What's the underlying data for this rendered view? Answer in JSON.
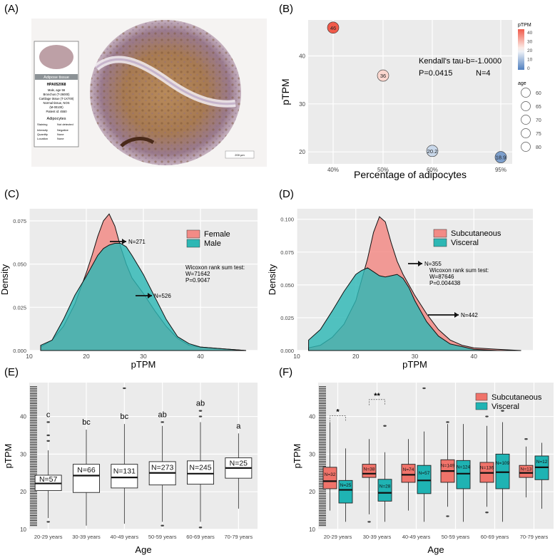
{
  "panel_labels": [
    "(A)",
    "(B)",
    "(C)",
    "(D)",
    "(E)",
    "(F)"
  ],
  "tissue_card": {
    "header": "Adipose tissue",
    "antibody": "HPA052068",
    "lines": [
      "Male, age 56",
      "Bronchus (T-26000)",
      "Cartilage tissue (T-1X700)",
      "Normal tissue, NOS",
      "(M-00100)",
      "Patient id: 4550"
    ],
    "section_title": "Adipocytes",
    "rows": [
      [
        "Staining",
        "Not detected"
      ],
      [
        "Intensity",
        "Negative"
      ],
      [
        "Quantity",
        "None"
      ],
      [
        "Location",
        "None"
      ]
    ],
    "scale_bar": "200 µm"
  },
  "chart_data": [
    {
      "id": "B",
      "type": "scatter",
      "xlabel": "Percentage of adipocytes",
      "ylabel": "pTPM",
      "categories": [
        "40%",
        "50%",
        "60%",
        "95%"
      ],
      "points": [
        {
          "x": "40%",
          "y": 45.9,
          "label": "46",
          "color": "#f05a4a"
        },
        {
          "x": "50%",
          "y": 35.9,
          "label": "36",
          "color": "#fbd7cf"
        },
        {
          "x": "60%",
          "y": 20.2,
          "label": "20.2",
          "color": "#c9d8ea"
        },
        {
          "x": "95%",
          "y": 18.9,
          "label": "18.9",
          "color": "#7d9fcc"
        }
      ],
      "yticks": [
        20,
        30,
        40
      ],
      "ylim": [
        17.5,
        47.5
      ],
      "annotations": [
        "Kendall's tau-b=-1.0000",
        "P=0.0415",
        "N=4"
      ],
      "color_legend": {
        "title": "pTPM",
        "ticks": [
          "40",
          "30",
          "20",
          "10",
          "0"
        ]
      },
      "size_legend": {
        "title": "age",
        "ticks": [
          "60",
          "65",
          "70",
          "75",
          "80"
        ]
      }
    },
    {
      "id": "C",
      "type": "area",
      "xlabel": "pTPM",
      "ylabel": "Density",
      "xlim": [
        10,
        50
      ],
      "ylim": [
        0,
        0.082
      ],
      "xticks": [
        10,
        20,
        30,
        40
      ],
      "yticks": [
        0.0,
        0.025,
        0.05,
        0.075
      ],
      "ytick_labels": [
        "0.000",
        "0.025",
        "0.050",
        "0.075"
      ],
      "series": [
        {
          "name": "Female",
          "color": "#f28b86",
          "x": [
            12,
            14,
            16,
            18,
            20,
            21,
            22,
            23,
            24,
            25,
            26,
            27,
            28,
            30,
            32,
            34,
            36,
            38,
            40,
            44,
            48
          ],
          "values": [
            0.002,
            0.006,
            0.014,
            0.027,
            0.045,
            0.055,
            0.066,
            0.075,
            0.079,
            0.072,
            0.06,
            0.05,
            0.042,
            0.033,
            0.023,
            0.014,
            0.007,
            0.003,
            0.002,
            0.001,
            0.0
          ]
        },
        {
          "name": "Male",
          "color": "#2db7b4",
          "x": [
            12,
            14,
            16,
            18,
            20,
            22,
            23,
            24,
            25,
            26,
            27,
            28,
            30,
            32,
            34,
            36,
            38,
            40,
            44,
            48
          ],
          "values": [
            0.003,
            0.006,
            0.018,
            0.032,
            0.043,
            0.055,
            0.059,
            0.061,
            0.062,
            0.062,
            0.06,
            0.055,
            0.044,
            0.031,
            0.018,
            0.008,
            0.004,
            0.002,
            0.001,
            0.0
          ]
        }
      ],
      "annotations": [
        "N=271",
        "N=526",
        "Wicoxon rank sum test:",
        "W=71642",
        "P=0.9047"
      ]
    },
    {
      "id": "D",
      "type": "area",
      "xlabel": "pTPM",
      "ylabel": "Density",
      "xlim": [
        10,
        50
      ],
      "ylim": [
        0,
        0.108
      ],
      "xticks": [
        10,
        20,
        30,
        40
      ],
      "yticks": [
        0.0,
        0.025,
        0.05,
        0.075,
        0.1
      ],
      "ytick_labels": [
        "0.000",
        "0.025",
        "0.050",
        "0.075",
        "0.100"
      ],
      "series": [
        {
          "name": "Subcutaneous",
          "color": "#f28b86",
          "x": [
            12,
            14,
            16,
            18,
            20,
            22,
            23,
            24,
            25,
            26,
            27,
            28,
            30,
            32,
            34,
            36,
            38,
            40,
            44,
            48
          ],
          "values": [
            0.002,
            0.004,
            0.01,
            0.02,
            0.038,
            0.07,
            0.09,
            0.102,
            0.098,
            0.082,
            0.068,
            0.058,
            0.042,
            0.028,
            0.016,
            0.008,
            0.004,
            0.002,
            0.001,
            0.0
          ]
        },
        {
          "name": "Visceral",
          "color": "#2db7b4",
          "x": [
            12,
            14,
            16,
            18,
            20,
            21,
            22,
            23,
            24,
            25,
            26,
            27,
            28,
            29,
            30,
            32,
            34,
            36,
            38,
            40,
            44,
            48
          ],
          "values": [
            0.008,
            0.016,
            0.03,
            0.045,
            0.058,
            0.061,
            0.063,
            0.06,
            0.057,
            0.056,
            0.057,
            0.058,
            0.055,
            0.048,
            0.038,
            0.022,
            0.011,
            0.005,
            0.003,
            0.001,
            0.0,
            0.0
          ]
        }
      ],
      "annotations": [
        "N=355",
        "N=442",
        "Wicoxon rank sum test:",
        "W=87646",
        "P=0.004438"
      ]
    },
    {
      "id": "E",
      "type": "box",
      "xlabel": "Age",
      "ylabel": "pTPM",
      "ylim": [
        10,
        49
      ],
      "yticks": [
        10,
        20,
        30,
        40
      ],
      "categories": [
        "20-29 years",
        "30-39 years",
        "40-49 years",
        "50-59 years",
        "60-69 years",
        "70-79 years"
      ],
      "boxes": [
        {
          "min": 13,
          "q1": 20.3,
          "median": 22.2,
          "q3": 24.4,
          "max": 31,
          "outliers": [
            33.5,
            35,
            38.5,
            12
          ],
          "n": "N=57",
          "letter": "c"
        },
        {
          "min": 11,
          "q1": 19.8,
          "median": 24.3,
          "q3": 27.3,
          "max": 36.5,
          "outliers": [],
          "n": "N=66",
          "letter": "bc"
        },
        {
          "min": 11.5,
          "q1": 21.0,
          "median": 23.8,
          "q3": 27.3,
          "max": 38,
          "outliers": [
            47.5
          ],
          "n": "N=131",
          "letter": "bc"
        },
        {
          "min": 12,
          "q1": 21.8,
          "median": 25.0,
          "q3": 28.0,
          "max": 37.5,
          "outliers": [
            38.5,
            11
          ],
          "n": "N=273",
          "letter": "ab"
        },
        {
          "min": 12,
          "q1": 22.0,
          "median": 24.8,
          "q3": 28.2,
          "max": 38.5,
          "outliers": [
            41.5,
            40,
            10.5
          ],
          "n": "N=245",
          "letter": "ab"
        },
        {
          "min": 15.5,
          "q1": 23.6,
          "median": 26.3,
          "q3": 29.0,
          "max": 35.5,
          "outliers": [],
          "n": "N=25",
          "letter": "a"
        }
      ]
    },
    {
      "id": "F",
      "type": "box",
      "xlabel": "Age",
      "ylabel": "pTPM",
      "ylim": [
        10,
        49
      ],
      "yticks": [
        10,
        20,
        30,
        40
      ],
      "categories": [
        "20-29 years",
        "30-39 years",
        "40-49 years",
        "50-59 years",
        "60-69 years",
        "70-79 years"
      ],
      "series": [
        {
          "name": "Subcutaneous",
          "color": "#f0736a",
          "boxes": [
            {
              "min": 15,
              "q1": 20.8,
              "median": 22.8,
              "q3": 26.5,
              "max": 38.5,
              "outliers": [],
              "n": "N=32"
            },
            {
              "min": 14,
              "q1": 23.8,
              "median": 24.8,
              "q3": 27.3,
              "max": 34,
              "outliers": [
                12
              ],
              "n": "N=38"
            },
            {
              "min": 15,
              "q1": 22.5,
              "median": 24.5,
              "q3": 27.3,
              "max": 34,
              "outliers": [],
              "n": "N=74"
            },
            {
              "min": 16,
              "q1": 22.5,
              "median": 25.5,
              "q3": 28.5,
              "max": 38,
              "outliers": [
                38.5,
                13.5
              ],
              "n": "N=149"
            },
            {
              "min": 16,
              "q1": 22.5,
              "median": 25.0,
              "q3": 27.8,
              "max": 37.5,
              "outliers": [
                40,
                14.5
              ],
              "n": "N=136"
            },
            {
              "min": 18.5,
              "q1": 23.8,
              "median": 25.0,
              "q3": 27.0,
              "max": 32,
              "outliers": [
                34
              ],
              "n": "N=13"
            }
          ]
        },
        {
          "name": "Visceral",
          "color": "#1fb3b3",
          "boxes": [
            {
              "min": 12,
              "q1": 17.0,
              "median": 20.5,
              "q3": 23.0,
              "max": 31.5,
              "outliers": [],
              "n": "N=25"
            },
            {
              "min": 12,
              "q1": 17.5,
              "median": 19.7,
              "q3": 23.3,
              "max": 30.5,
              "outliers": [
                37.5
              ],
              "n": "N=28"
            },
            {
              "min": 12,
              "q1": 19.5,
              "median": 23.0,
              "q3": 27.0,
              "max": 36,
              "outliers": [
                47.5
              ],
              "n": "N=57"
            },
            {
              "min": 12,
              "q1": 20.8,
              "median": 24.8,
              "q3": 28.3,
              "max": 38,
              "outliers": [],
              "n": "N=124"
            },
            {
              "min": 12,
              "q1": 20.8,
              "median": 25.2,
              "q3": 30.0,
              "max": 38.5,
              "outliers": [
                41.5
              ],
              "n": "N=109"
            },
            {
              "min": 15.5,
              "q1": 23.2,
              "median": 26.5,
              "q3": 29.5,
              "max": 33,
              "outliers": [],
              "n": "N=12"
            }
          ]
        }
      ],
      "significance": [
        "*",
        "**"
      ]
    }
  ]
}
